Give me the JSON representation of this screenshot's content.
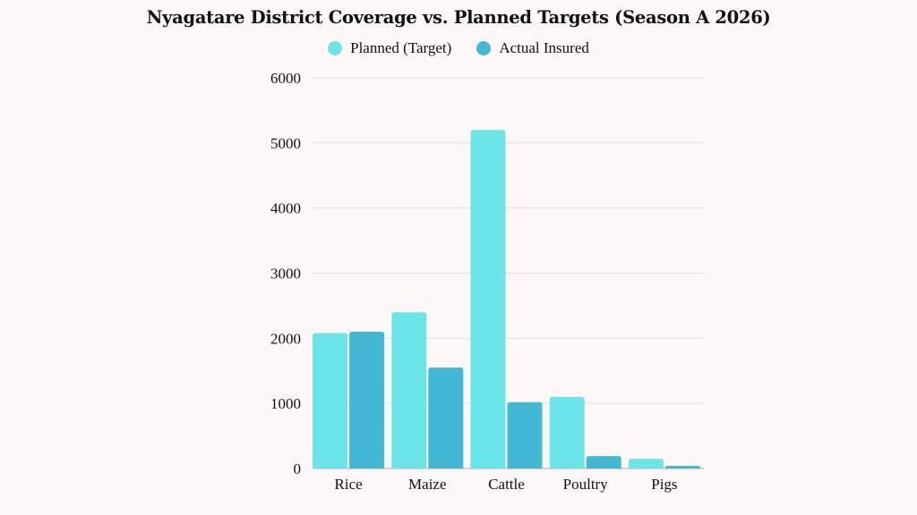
{
  "chart_data": {
    "type": "bar",
    "title": "Nyagatare District Coverage vs. Planned Targets (Season A 2026)",
    "xlabel": "",
    "ylabel": "",
    "categories": [
      "Rice",
      "Maize",
      "Cattle",
      "Poultry",
      "Pigs"
    ],
    "series": [
      {
        "name": "Planned (Target)",
        "color": "#6ce5e8",
        "values": [
          2080,
          2400,
          5200,
          1100,
          150
        ]
      },
      {
        "name": "Actual Insured",
        "color": "#42b8d5",
        "values": [
          2100,
          1550,
          1020,
          190,
          40
        ]
      }
    ],
    "ylim": [
      0,
      6000
    ],
    "yticks": [
      0,
      1000,
      2000,
      3000,
      4000,
      5000,
      6000
    ],
    "ytick_labels": [
      "0",
      "1000",
      "2000",
      "3000",
      "4000",
      "5000",
      "6000"
    ],
    "grid": true,
    "legend_position": "top-center"
  }
}
